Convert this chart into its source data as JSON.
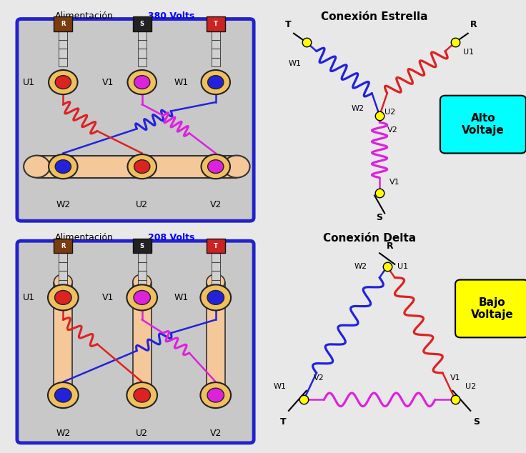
{
  "bg_color": "#e8e8e8",
  "red_color": "#dd2222",
  "blue_color": "#2222dd",
  "magenta_color": "#dd22dd",
  "yellow_dot": "#ffff00",
  "brown_color": "#7B3B10",
  "black_color": "#111111",
  "connector_bg": "#f5c89a",
  "box_bg": "#c8c8c8",
  "box_border": "#2222cc",
  "title_380": "Alimentación",
  "title_380v": "380 Volts",
  "title_208": "Alimentación",
  "title_208v": "208 Volts",
  "star_title": "Conexión Estrella",
  "delta_title": "Conexión Delta",
  "alto_voltaje": "Alto\nVoltaje",
  "bajo_voltaje": "Bajo\nVoltaje"
}
